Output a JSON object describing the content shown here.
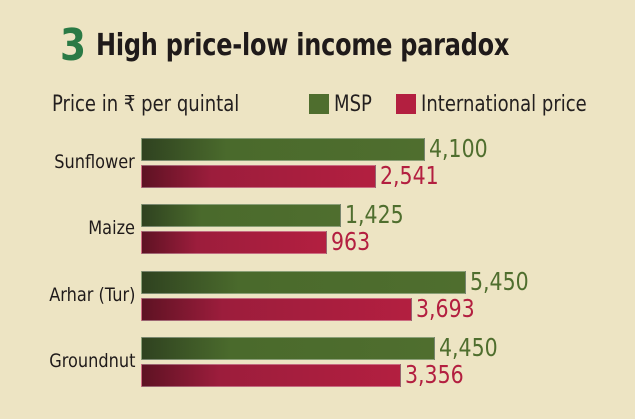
{
  "header": {
    "number": "3",
    "title": "High price-low income paradox"
  },
  "legend": {
    "unit": "Price in ₹ per quintal",
    "items": [
      {
        "label": "MSP",
        "color": "#4f6e2e"
      },
      {
        "label": "International price",
        "color": "#b31f40"
      }
    ]
  },
  "chart_data": {
    "type": "bar",
    "orientation": "horizontal",
    "title": "High price-low income paradox",
    "ylabel": "Price in ₹ per quintal",
    "categories": [
      "Sunflower",
      "Maize",
      "Arhar (Tur)",
      "Groundnut"
    ],
    "series": [
      {
        "name": "MSP",
        "color": "#4f6e2e",
        "values": [
          4100,
          1425,
          5450,
          4450
        ],
        "labels": [
          "4,100",
          "1,425",
          "5,450",
          "4,450"
        ]
      },
      {
        "name": "International price",
        "color": "#b31f40",
        "values": [
          2541,
          963,
          3693,
          3356
        ],
        "labels": [
          "2,541",
          "963",
          "3,693",
          "3,356"
        ]
      }
    ],
    "legend": "top",
    "grid": false
  }
}
